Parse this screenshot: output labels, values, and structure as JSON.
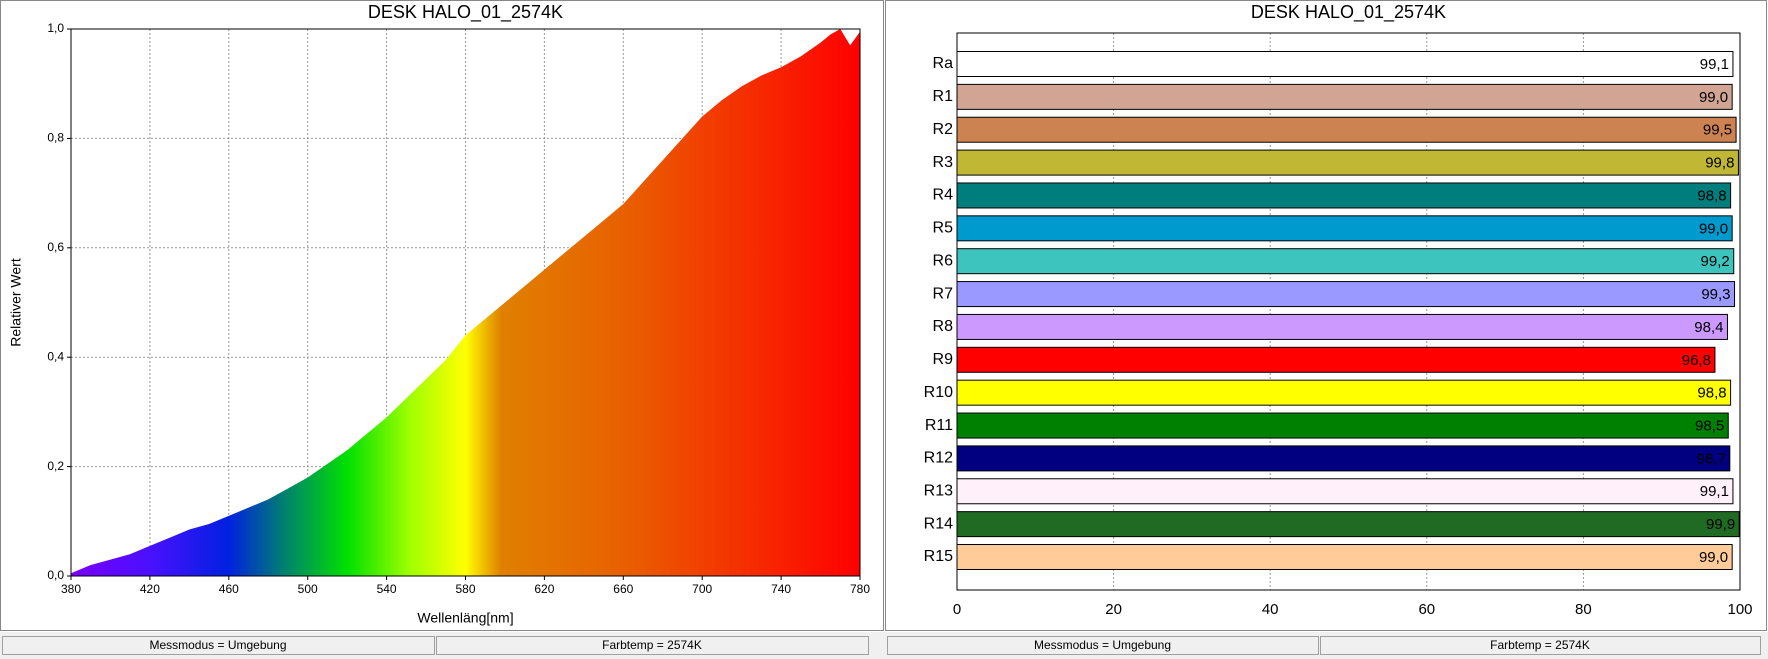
{
  "chart_data": [
    {
      "type": "area",
      "title": "DESK HALO_01_2574K",
      "x_label": "Wellenläng[nm]",
      "y_label": "Relativer Wert",
      "x": [
        380,
        390,
        400,
        410,
        420,
        430,
        440,
        450,
        460,
        470,
        480,
        490,
        500,
        510,
        520,
        530,
        540,
        550,
        560,
        570,
        580,
        590,
        600,
        610,
        620,
        630,
        640,
        650,
        660,
        670,
        680,
        690,
        700,
        710,
        720,
        730,
        740,
        750,
        760,
        765,
        770,
        775,
        780
      ],
      "values": [
        0.005,
        0.02,
        0.03,
        0.04,
        0.055,
        0.07,
        0.085,
        0.095,
        0.11,
        0.125,
        0.14,
        0.16,
        0.18,
        0.205,
        0.23,
        0.26,
        0.29,
        0.325,
        0.36,
        0.395,
        0.44,
        0.47,
        0.5,
        0.53,
        0.56,
        0.59,
        0.62,
        0.65,
        0.68,
        0.72,
        0.76,
        0.8,
        0.84,
        0.87,
        0.895,
        0.915,
        0.93,
        0.95,
        0.975,
        0.99,
        1.0,
        0.97,
        0.995
      ],
      "xlim": [
        380,
        780
      ],
      "xticks": [
        380,
        420,
        460,
        500,
        540,
        580,
        620,
        660,
        700,
        740,
        780
      ],
      "ylim": [
        0,
        1
      ],
      "yticks": [
        {
          "value": 0,
          "label": "0,0"
        },
        {
          "value": 0.2,
          "label": "0,2"
        },
        {
          "value": 0.4,
          "label": "0,4"
        },
        {
          "value": 0.6,
          "label": "0,6"
        },
        {
          "value": 0.8,
          "label": "0,8"
        },
        {
          "value": 1,
          "label": "1,0"
        }
      ],
      "grid": true
    },
    {
      "type": "hbar",
      "title": "DESK HALO_01_2574K",
      "categories": [
        "Ra",
        "R1",
        "R2",
        "R3",
        "R4",
        "R5",
        "R6",
        "R7",
        "R8",
        "R9",
        "R10",
        "R11",
        "R12",
        "R13",
        "R14",
        "R15"
      ],
      "values": [
        99.1,
        99.0,
        99.5,
        99.8,
        98.8,
        99.0,
        99.2,
        99.3,
        98.4,
        96.8,
        98.8,
        98.5,
        98.7,
        99.1,
        99.9,
        99.0
      ],
      "value_labels": [
        "99,1",
        "99,0",
        "99,5",
        "99,8",
        "98,8",
        "99,0",
        "99,2",
        "99,3",
        "98,4",
        "96,8",
        "98,8",
        "98,5",
        "98,7",
        "99,1",
        "99,9",
        "99,0"
      ],
      "colors": [
        "#ffffff",
        "#d1a493",
        "#cd8351",
        "#c0b835",
        "#007e7e",
        "#009acf",
        "#3ec4be",
        "#9999ff",
        "#cc99ff",
        "#ff0000",
        "#ffff00",
        "#008000",
        "#000080",
        "#fff0fa",
        "#1f6b24",
        "#ffcc99"
      ],
      "xlim": [
        0,
        100
      ],
      "xticks": [
        0,
        20,
        40,
        60,
        80,
        100
      ],
      "grid": true
    }
  ],
  "status": [
    "Messmodus = Umgebung",
    "Farbtemp = 2574K",
    "Messmodus = Umgebung",
    "Farbtemp = 2574K"
  ]
}
